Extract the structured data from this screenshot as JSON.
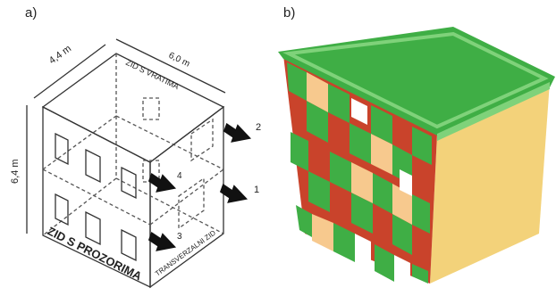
{
  "panels": {
    "a": {
      "label": "a)",
      "dims": {
        "width_top": "4,4 m",
        "length_top": "6,0 m",
        "height": "6,4 m"
      },
      "walls": {
        "back": "ZID S VRATIMA",
        "front": "ZID S PROZORIMA",
        "side": "TRANSVERZALNI ZID"
      },
      "arrows": [
        "1",
        "2",
        "3",
        "4"
      ]
    },
    "b": {
      "label": "b)",
      "colors": {
        "green": "#3fae45",
        "green_light": "#7fd27a",
        "red": "#c9432b",
        "orange": "#f2a65a",
        "light_orange": "#f7c98e",
        "yellow_side": "#f3d27a"
      }
    }
  }
}
